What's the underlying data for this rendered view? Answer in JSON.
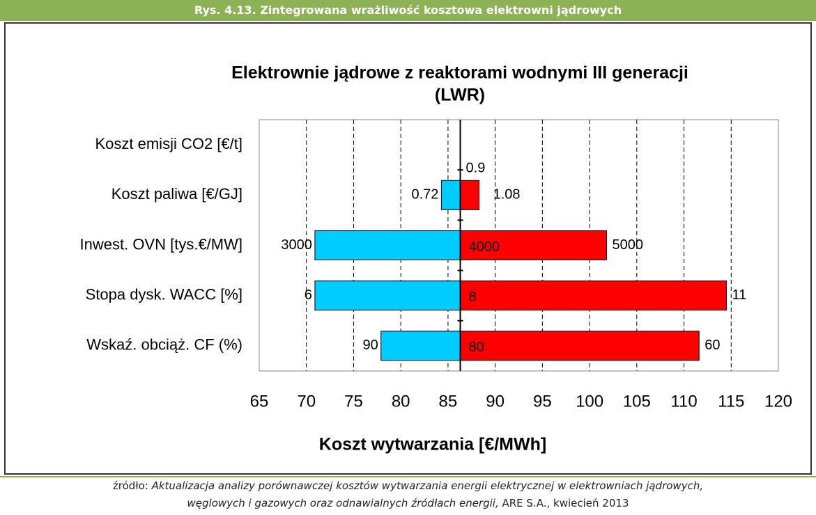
{
  "header": {
    "title": "Rys. 4.13. Zintegrowana wrażliwość kosztowa elektrowni jądrowych"
  },
  "chart_data": {
    "type": "tornado",
    "title": "Elektrownie jądrowe z reaktorami  wodnymi III generacji",
    "subtitle": "(LWR)",
    "x_label": "Koszt wytwarzania  [€/MWh]",
    "categories": [
      "Koszt emisji CO2 [€/t]",
      "Koszt paliwa [€/GJ]",
      "Inwest. OVN  [tys.€/MW]",
      "Stopa dysk. WACC [%]",
      "Wskaź. obciąż. CF (%)"
    ],
    "base": 86.3,
    "low": {
      "color": "#00ccff",
      "values": [
        null,
        84.3,
        70.9,
        70.9,
        77.9
      ],
      "labels": [
        null,
        0.72,
        3000,
        6,
        90
      ]
    },
    "high": {
      "color": "#ff0000",
      "values": [
        null,
        88.3,
        101.8,
        114.5,
        111.6
      ],
      "labels": [
        null,
        1.08,
        5000,
        11,
        60
      ]
    },
    "base_labels": [
      null,
      0.9,
      4000,
      8,
      80
    ],
    "xlim": [
      65,
      120
    ],
    "xticks": [
      65,
      70,
      75,
      80,
      85,
      90,
      95,
      100,
      105,
      110,
      115,
      120
    ],
    "grid": true
  },
  "source": {
    "prefix": "źródło: ",
    "line1": "Aktualizacja analizy porównawczej kosztów wytwarzania energii elektrycznej w elektrowniach jądrowych,",
    "line2": "węglowych i gazowych  oraz odnawialnych źródłach energii,",
    "suffix": " ARE S.A., kwiecień 2013"
  }
}
